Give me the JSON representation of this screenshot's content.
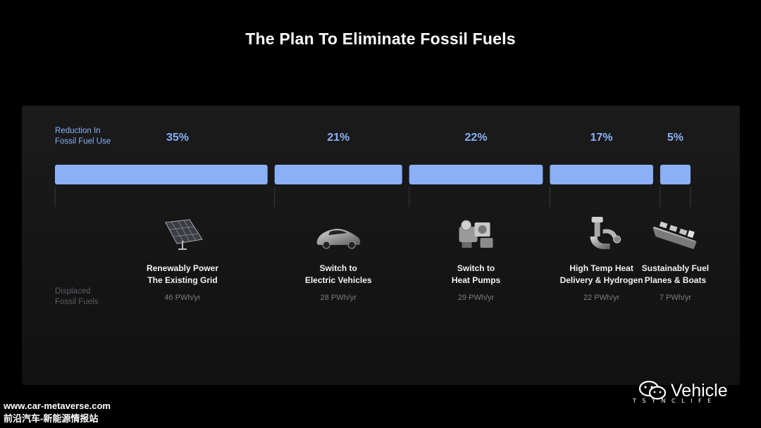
{
  "title": "The Plan To Eliminate Fossil Fuels",
  "row_labels": {
    "reduction": "Reduction In\nFossil Fuel Use",
    "displaced": "Displaced\nFossil Fuels"
  },
  "colors": {
    "bar": "#8ab0f5",
    "background": "#000000",
    "panel": "#18181a"
  },
  "chart_data": {
    "type": "bar",
    "orientation": "horizontal-stacked",
    "title": "The Plan To Eliminate Fossil Fuels",
    "categories": [
      "Renewably Power The Existing Grid",
      "Switch to Electric Vehicles",
      "Switch to Heat Pumps",
      "High Temp Heat Delivery & Hydrogen",
      "Sustainably Fuel Planes & Boats"
    ],
    "series": [
      {
        "name": "Reduction In Fossil Fuel Use",
        "values": [
          35,
          21,
          22,
          17,
          5
        ],
        "unit": "%"
      },
      {
        "name": "Displaced Fossil Fuels",
        "values": [
          46,
          28,
          29,
          22,
          7
        ],
        "unit": "PWh/yr"
      }
    ],
    "items": [
      {
        "pct": "35%",
        "line1": "Renewably Power",
        "line2": "The Existing Grid",
        "pwh": "46 PWh/yr",
        "icon": "solar-panel-icon"
      },
      {
        "pct": "21%",
        "line1": "Switch to",
        "line2": "Electric Vehicles",
        "pwh": "28 PWh/yr",
        "icon": "car-icon"
      },
      {
        "pct": "22%",
        "line1": "Switch to",
        "line2": "Heat Pumps",
        "pwh": "29 PWh/yr",
        "icon": "heat-pump-icon"
      },
      {
        "pct": "17%",
        "line1": "High Temp Heat",
        "line2": "Delivery & Hydrogen",
        "pwh": "22 PWh/yr",
        "icon": "industrial-heater-icon"
      },
      {
        "pct": "5%",
        "line1": "Sustainably Fuel",
        "line2": "Planes & Boats",
        "pwh": "7 PWh/yr",
        "icon": "ship-icon"
      }
    ]
  },
  "watermark": {
    "text": "www.car-metaverse.com\n前沿汽车-新能源情报站"
  },
  "logo": {
    "text": "Vehicle",
    "sub": "T S Y N C L I F E",
    "icon": "wechat-icon"
  }
}
